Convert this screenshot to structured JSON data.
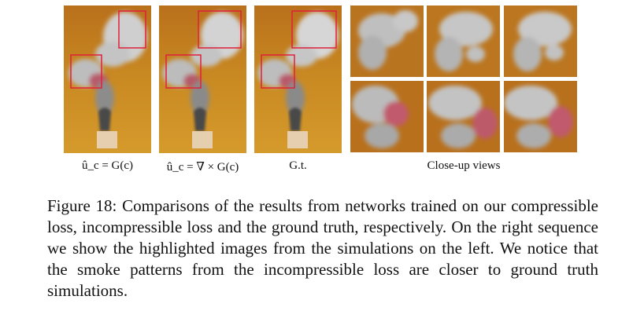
{
  "figure": {
    "panel_labels": [
      "û_c = G(c)",
      "û_c = ∇ × G(c)",
      "G.t.",
      "Close-up views"
    ],
    "colors": {
      "background_orange": "#c8861c",
      "smoke": "#c9c9c9",
      "highlight_box": "#e0203a",
      "chimney": "#4a4a4a"
    }
  },
  "caption": {
    "label": "Figure 18:",
    "text": "Comparisons of the results from networks trained on our compressible loss, incompressible loss and the ground truth, respectively. On the right sequence we show the highlighted images from the simulations on the left. We notice that the smoke patterns from the incompressible loss are closer to ground truth simulations."
  }
}
